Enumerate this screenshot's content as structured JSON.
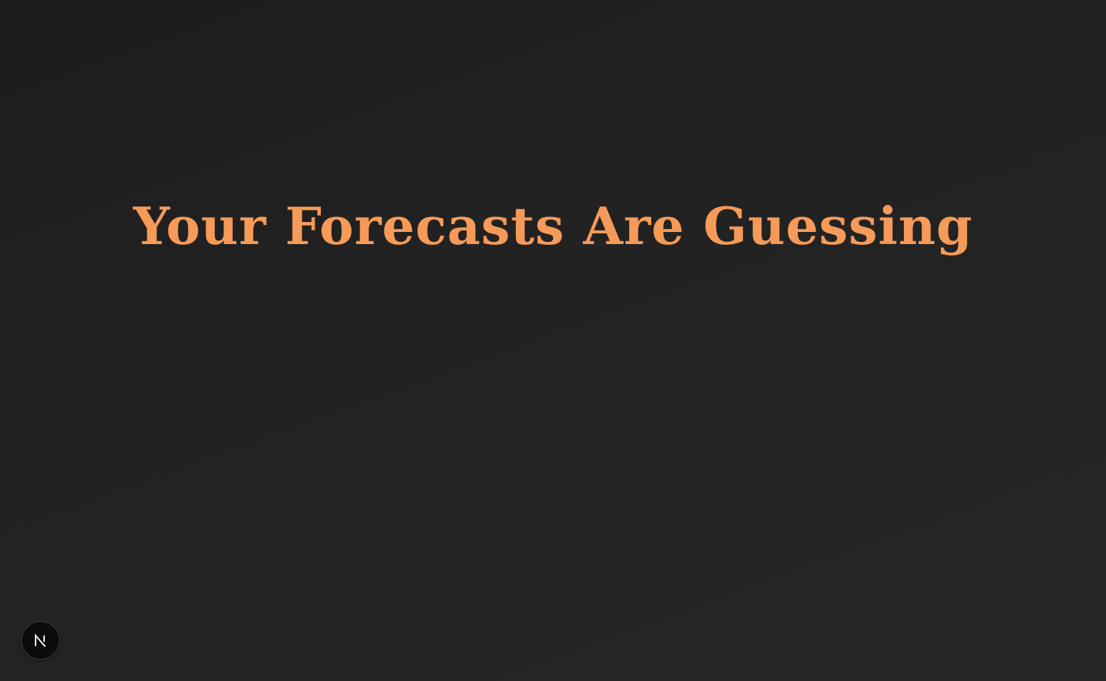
{
  "hero": {
    "title": "Your Forecasts Are Guessing",
    "title_color": "#f59a58"
  },
  "dev_indicator": {
    "icon": "nextjs-logo-icon",
    "background": "#0b0b0b"
  }
}
